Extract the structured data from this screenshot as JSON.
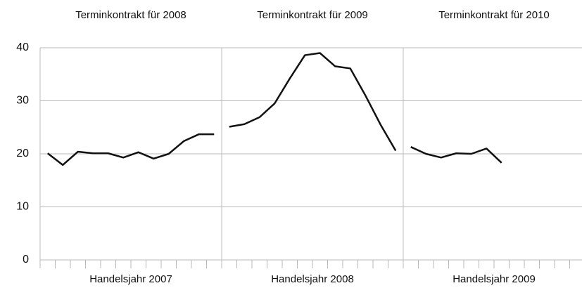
{
  "chart_data": [
    {
      "type": "line",
      "title": "Terminkontrakt für 2008",
      "x_label": "Handelsjahr 2007",
      "values": [
        20.1,
        17.9,
        20.4,
        20.1,
        20.1,
        19.3,
        20.3,
        19.1,
        20.0,
        22.4,
        23.7,
        23.7
      ],
      "color": "#111111",
      "ylim": [
        0,
        40
      ],
      "yticks": [
        0,
        10,
        20,
        30,
        40
      ],
      "grid": true
    },
    {
      "type": "line",
      "title": "Terminkontrakt für 2009",
      "x_label": "Handelsjahr 2008",
      "values": [
        25.1,
        25.6,
        26.9,
        29.5,
        34.2,
        38.6,
        39.0,
        36.5,
        36.1,
        31.0,
        25.5,
        20.6
      ],
      "color": "#111111",
      "ylim": [
        0,
        40
      ],
      "yticks": [
        0,
        10,
        20,
        30,
        40
      ],
      "grid": true
    },
    {
      "type": "line",
      "title": "Terminkontrakt für 2010",
      "x_label": "Handelsjahr 2009",
      "values": [
        21.3,
        20.0,
        19.3,
        20.1,
        20.0,
        21.0,
        18.3,
        null,
        null,
        null,
        null,
        null
      ],
      "color": "#111111",
      "ylim": [
        0,
        40
      ],
      "yticks": [
        0,
        10,
        20,
        30,
        40
      ],
      "grid": true
    }
  ]
}
